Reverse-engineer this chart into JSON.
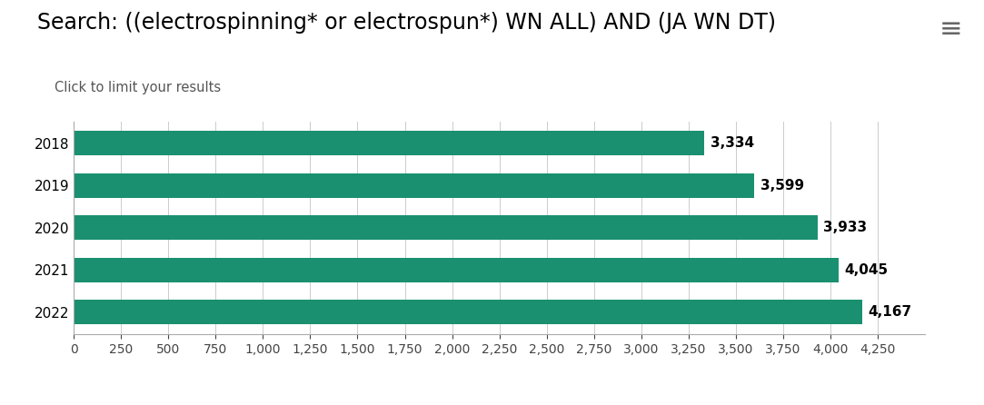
{
  "title": "Search: ((electrospinning* or electrospun*) WN ALL) AND (JA WN DT)",
  "subtitle": "Click to limit your results",
  "categories": [
    "2018",
    "2019",
    "2020",
    "2021",
    "2022"
  ],
  "values": [
    3334,
    3599,
    3933,
    4045,
    4167
  ],
  "bar_color": "#1a9070",
  "background_color": "#ffffff",
  "title_fontsize": 17,
  "subtitle_fontsize": 10.5,
  "label_fontsize": 11,
  "value_fontsize": 11,
  "tick_fontsize": 10,
  "xlim": [
    0,
    4500
  ],
  "xticks": [
    0,
    250,
    500,
    750,
    1000,
    1250,
    1500,
    1750,
    2000,
    2250,
    2500,
    2750,
    3000,
    3250,
    3500,
    3750,
    4000,
    4250
  ],
  "menu_icon_color": "#666666",
  "bar_height": 0.58
}
